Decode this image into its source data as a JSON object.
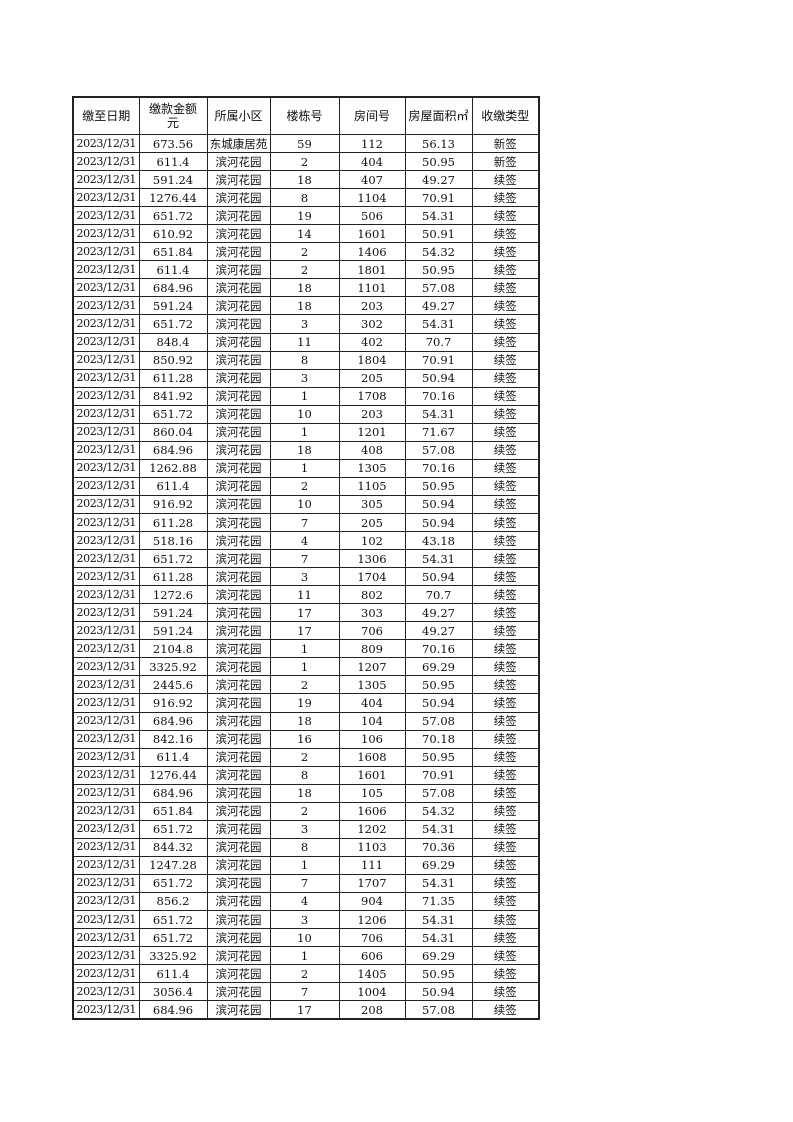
{
  "table": {
    "headers": [
      "缴至日期",
      "缴款金额\n元",
      "所属小区",
      "楼栋号",
      "房间号",
      "房屋面积㎡",
      "收缴类型"
    ],
    "rows": [
      [
        "2023/12/31",
        "673.56",
        "东城康居苑",
        "59",
        "112",
        "56.13",
        "新签"
      ],
      [
        "2023/12/31",
        "611.4",
        "滨河花园",
        "2",
        "404",
        "50.95",
        "新签"
      ],
      [
        "2023/12/31",
        "591.24",
        "滨河花园",
        "18",
        "407",
        "49.27",
        "续签"
      ],
      [
        "2023/12/31",
        "1276.44",
        "滨河花园",
        "8",
        "1104",
        "70.91",
        "续签"
      ],
      [
        "2023/12/31",
        "651.72",
        "滨河花园",
        "19",
        "506",
        "54.31",
        "续签"
      ],
      [
        "2023/12/31",
        "610.92",
        "滨河花园",
        "14",
        "1601",
        "50.91",
        "续签"
      ],
      [
        "2023/12/31",
        "651.84",
        "滨河花园",
        "2",
        "1406",
        "54.32",
        "续签"
      ],
      [
        "2023/12/31",
        "611.4",
        "滨河花园",
        "2",
        "1801",
        "50.95",
        "续签"
      ],
      [
        "2023/12/31",
        "684.96",
        "滨河花园",
        "18",
        "1101",
        "57.08",
        "续签"
      ],
      [
        "2023/12/31",
        "591.24",
        "滨河花园",
        "18",
        "203",
        "49.27",
        "续签"
      ],
      [
        "2023/12/31",
        "651.72",
        "滨河花园",
        "3",
        "302",
        "54.31",
        "续签"
      ],
      [
        "2023/12/31",
        "848.4",
        "滨河花园",
        "11",
        "402",
        "70.7",
        "续签"
      ],
      [
        "2023/12/31",
        "850.92",
        "滨河花园",
        "8",
        "1804",
        "70.91",
        "续签"
      ],
      [
        "2023/12/31",
        "611.28",
        "滨河花园",
        "3",
        "205",
        "50.94",
        "续签"
      ],
      [
        "2023/12/31",
        "841.92",
        "滨河花园",
        "1",
        "1708",
        "70.16",
        "续签"
      ],
      [
        "2023/12/31",
        "651.72",
        "滨河花园",
        "10",
        "203",
        "54.31",
        "续签"
      ],
      [
        "2023/12/31",
        "860.04",
        "滨河花园",
        "1",
        "1201",
        "71.67",
        "续签"
      ],
      [
        "2023/12/31",
        "684.96",
        "滨河花园",
        "18",
        "408",
        "57.08",
        "续签"
      ],
      [
        "2023/12/31",
        "1262.88",
        "滨河花园",
        "1",
        "1305",
        "70.16",
        "续签"
      ],
      [
        "2023/12/31",
        "611.4",
        "滨河花园",
        "2",
        "1105",
        "50.95",
        "续签"
      ],
      [
        "2023/12/31",
        "916.92",
        "滨河花园",
        "10",
        "305",
        "50.94",
        "续签"
      ],
      [
        "2023/12/31",
        "611.28",
        "滨河花园",
        "7",
        "205",
        "50.94",
        "续签"
      ],
      [
        "2023/12/31",
        "518.16",
        "滨河花园",
        "4",
        "102",
        "43.18",
        "续签"
      ],
      [
        "2023/12/31",
        "651.72",
        "滨河花园",
        "7",
        "1306",
        "54.31",
        "续签"
      ],
      [
        "2023/12/31",
        "611.28",
        "滨河花园",
        "3",
        "1704",
        "50.94",
        "续签"
      ],
      [
        "2023/12/31",
        "1272.6",
        "滨河花园",
        "11",
        "802",
        "70.7",
        "续签"
      ],
      [
        "2023/12/31",
        "591.24",
        "滨河花园",
        "17",
        "303",
        "49.27",
        "续签"
      ],
      [
        "2023/12/31",
        "591.24",
        "滨河花园",
        "17",
        "706",
        "49.27",
        "续签"
      ],
      [
        "2023/12/31",
        "2104.8",
        "滨河花园",
        "1",
        "809",
        "70.16",
        "续签"
      ],
      [
        "2023/12/31",
        "3325.92",
        "滨河花园",
        "1",
        "1207",
        "69.29",
        "续签"
      ],
      [
        "2023/12/31",
        "2445.6",
        "滨河花园",
        "2",
        "1305",
        "50.95",
        "续签"
      ],
      [
        "2023/12/31",
        "916.92",
        "滨河花园",
        "19",
        "404",
        "50.94",
        "续签"
      ],
      [
        "2023/12/31",
        "684.96",
        "滨河花园",
        "18",
        "104",
        "57.08",
        "续签"
      ],
      [
        "2023/12/31",
        "842.16",
        "滨河花园",
        "16",
        "106",
        "70.18",
        "续签"
      ],
      [
        "2023/12/31",
        "611.4",
        "滨河花园",
        "2",
        "1608",
        "50.95",
        "续签"
      ],
      [
        "2023/12/31",
        "1276.44",
        "滨河花园",
        "8",
        "1601",
        "70.91",
        "续签"
      ],
      [
        "2023/12/31",
        "684.96",
        "滨河花园",
        "18",
        "105",
        "57.08",
        "续签"
      ],
      [
        "2023/12/31",
        "651.84",
        "滨河花园",
        "2",
        "1606",
        "54.32",
        "续签"
      ],
      [
        "2023/12/31",
        "651.72",
        "滨河花园",
        "3",
        "1202",
        "54.31",
        "续签"
      ],
      [
        "2023/12/31",
        "844.32",
        "滨河花园",
        "8",
        "1103",
        "70.36",
        "续签"
      ],
      [
        "2023/12/31",
        "1247.28",
        "滨河花园",
        "1",
        "111",
        "69.29",
        "续签"
      ],
      [
        "2023/12/31",
        "651.72",
        "滨河花园",
        "7",
        "1707",
        "54.31",
        "续签"
      ],
      [
        "2023/12/31",
        "856.2",
        "滨河花园",
        "4",
        "904",
        "71.35",
        "续签"
      ],
      [
        "2023/12/31",
        "651.72",
        "滨河花园",
        "3",
        "1206",
        "54.31",
        "续签"
      ],
      [
        "2023/12/31",
        "651.72",
        "滨河花园",
        "10",
        "706",
        "54.31",
        "续签"
      ],
      [
        "2023/12/31",
        "3325.92",
        "滨河花园",
        "1",
        "606",
        "69.29",
        "续签"
      ],
      [
        "2023/12/31",
        "611.4",
        "滨河花园",
        "2",
        "1405",
        "50.95",
        "续签"
      ],
      [
        "2023/12/31",
        "3056.4",
        "滨河花园",
        "7",
        "1004",
        "50.94",
        "续签"
      ],
      [
        "2023/12/31",
        "684.96",
        "滨河花园",
        "17",
        "208",
        "57.08",
        "续签"
      ]
    ]
  }
}
